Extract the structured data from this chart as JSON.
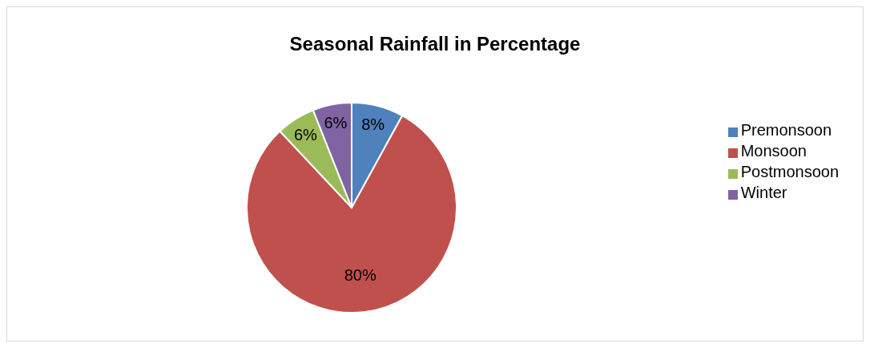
{
  "chart_data": {
    "type": "pie",
    "title": "Seasonal Rainfall in Percentage",
    "categories": [
      "Premonsoon",
      "Monsoon",
      "Postmonsoon",
      "Winter"
    ],
    "values": [
      8,
      80,
      6,
      6
    ],
    "colors": [
      "#4f81bd",
      "#c0504d",
      "#9bbb59",
      "#8064a2"
    ],
    "value_labels": [
      "8%",
      "80%",
      "6%",
      "6%"
    ],
    "legend": "right"
  }
}
